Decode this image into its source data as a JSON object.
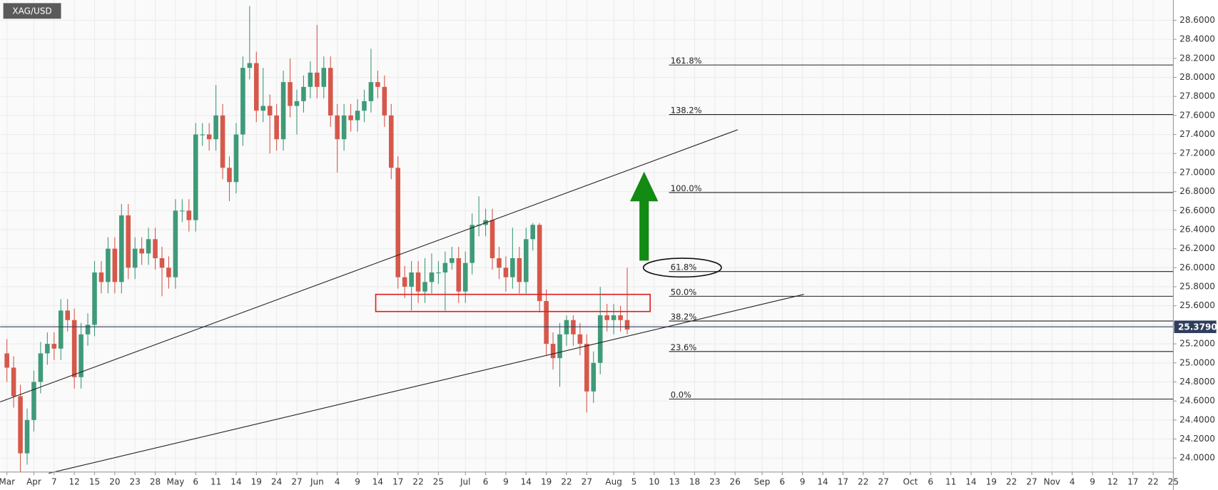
{
  "chart_data": {
    "type": "candlestick",
    "title": "XAG/USD",
    "up_color": "#3f9a78",
    "down_color": "#d6584b",
    "grid": true,
    "xlim": [
      -1,
      173
    ],
    "ylim": [
      23.853,
      28.813
    ],
    "xticks": [
      {
        "value": 0,
        "label": "Mar"
      },
      {
        "value": 4,
        "label": "Apr"
      },
      7,
      {
        "value": 10,
        "label": "12"
      },
      {
        "value": 13,
        "label": "15"
      },
      {
        "value": 16,
        "label": "20"
      },
      {
        "value": 19,
        "label": "23"
      },
      {
        "value": 22,
        "label": "28"
      },
      {
        "value": 25,
        "label": "May"
      },
      {
        "value": 28,
        "label": "6"
      },
      {
        "value": 31,
        "label": "11"
      },
      {
        "value": 34,
        "label": "14"
      },
      {
        "value": 37,
        "label": "19"
      },
      {
        "value": 40,
        "label": "24"
      },
      {
        "value": 43,
        "label": "27"
      },
      {
        "value": 46,
        "label": "Jun"
      },
      {
        "value": 49,
        "label": "4"
      },
      {
        "value": 52,
        "label": "9"
      },
      {
        "value": 55,
        "label": "14"
      },
      {
        "value": 58,
        "label": "17"
      },
      {
        "value": 61,
        "label": "22"
      },
      {
        "value": 64,
        "label": "25"
      },
      {
        "value": 68,
        "label": "Jul"
      },
      {
        "value": 71,
        "label": "6"
      },
      {
        "value": 74,
        "label": "9"
      },
      {
        "value": 77,
        "label": "14"
      },
      {
        "value": 80,
        "label": "19"
      },
      {
        "value": 83,
        "label": "22"
      },
      {
        "value": 86,
        "label": "27"
      },
      {
        "value": 90,
        "label": "Aug"
      },
      {
        "value": 93,
        "label": "5"
      },
      {
        "value": 96,
        "label": "10"
      },
      {
        "value": 99,
        "label": "13"
      },
      {
        "value": 102,
        "label": "18"
      },
      {
        "value": 105,
        "label": "23"
      },
      {
        "value": 108,
        "label": "26"
      },
      {
        "value": 112,
        "label": "Sep"
      },
      {
        "value": 115,
        "label": "6"
      },
      {
        "value": 118,
        "label": "9"
      },
      {
        "value": 121,
        "label": "14"
      },
      {
        "value": 124,
        "label": "17"
      },
      {
        "value": 127,
        "label": "22"
      },
      {
        "value": 130,
        "label": "27"
      },
      {
        "value": 134,
        "label": "Oct"
      },
      {
        "value": 137,
        "label": "6"
      },
      {
        "value": 140,
        "label": "11"
      },
      {
        "value": 143,
        "label": "14"
      },
      {
        "value": 146,
        "label": "19"
      },
      {
        "value": 149,
        "label": "22"
      },
      {
        "value": 152,
        "label": "27"
      },
      {
        "value": 155,
        "label": "Nov"
      },
      {
        "value": 158,
        "label": "4"
      },
      {
        "value": 161,
        "label": "9"
      },
      {
        "value": 164,
        "label": "12"
      },
      {
        "value": 167,
        "label": "17"
      },
      {
        "value": 170,
        "label": "22"
      },
      {
        "value": 173,
        "label": "25"
      }
    ],
    "yticks": [
      {
        "value": 24.0,
        "label": "24.0000"
      },
      {
        "value": 24.2,
        "label": "24.2000"
      },
      {
        "value": 24.4,
        "label": "24.4000"
      },
      {
        "value": 24.6,
        "label": "24.6000"
      },
      {
        "value": 24.8,
        "label": "24.8000"
      },
      {
        "value": 25.0,
        "label": "25.0000"
      },
      {
        "value": 25.2,
        "label": "25.2000"
      },
      {
        "value": 25.4,
        "label": "25.4000"
      },
      {
        "value": 25.6,
        "label": "25.6000"
      },
      {
        "value": 25.8,
        "label": "25.8000"
      },
      {
        "value": 26.0,
        "label": "26.0000"
      },
      {
        "value": 26.2,
        "label": "26.2000"
      },
      {
        "value": 26.4,
        "label": "26.4000"
      },
      {
        "value": 26.6,
        "label": "26.6000"
      },
      {
        "value": 26.8,
        "label": "26.8000"
      },
      {
        "value": 27.0,
        "label": "27.0000"
      },
      {
        "value": 27.2,
        "label": "27.2000"
      },
      {
        "value": 27.4,
        "label": "27.4000"
      },
      {
        "value": 27.6,
        "label": "27.6000"
      },
      {
        "value": 27.8,
        "label": "27.8000"
      },
      {
        "value": 28.0,
        "label": "28.0000"
      },
      {
        "value": 28.2,
        "label": "28.2000"
      },
      {
        "value": 28.4,
        "label": "28.4000"
      },
      {
        "value": 28.6,
        "label": "28.6000"
      }
    ],
    "x": [
      0,
      1,
      2,
      3,
      4,
      5,
      6,
      7,
      8,
      9,
      10,
      11,
      12,
      13,
      14,
      15,
      16,
      17,
      18,
      19,
      20,
      21,
      22,
      23,
      24,
      25,
      26,
      27,
      28,
      29,
      30,
      31,
      32,
      33,
      34,
      35,
      36,
      37,
      38,
      39,
      40,
      41,
      42,
      43,
      44,
      45,
      46,
      47,
      48,
      49,
      50,
      51,
      52,
      53,
      54,
      55,
      56,
      57,
      58,
      59,
      60,
      61,
      62,
      63,
      64,
      65,
      66,
      67,
      68,
      69,
      70,
      71,
      72,
      73,
      74,
      75,
      76,
      77,
      78,
      79,
      80,
      81,
      82,
      83,
      84,
      85,
      86,
      87,
      88,
      89,
      90,
      91,
      92
    ],
    "open": [
      25.1,
      24.95,
      24.65,
      24.05,
      24.4,
      24.8,
      25.1,
      25.2,
      25.15,
      25.55,
      25.45,
      24.85,
      25.3,
      25.4,
      25.95,
      25.85,
      26.2,
      25.85,
      26.55,
      26.0,
      26.2,
      26.15,
      26.3,
      26.1,
      26.0,
      25.9,
      26.6,
      26.6,
      26.5,
      27.4,
      27.4,
      27.35,
      27.6,
      27.05,
      26.9,
      27.4,
      28.1,
      28.15,
      27.65,
      27.7,
      27.6,
      27.35,
      27.95,
      27.7,
      27.75,
      27.9,
      28.05,
      27.9,
      28.1,
      27.6,
      27.35,
      27.6,
      27.55,
      27.65,
      27.75,
      27.95,
      27.9,
      27.6,
      27.05,
      25.9,
      25.8,
      25.95,
      25.75,
      25.85,
      25.95,
      25.95,
      26.05,
      26.1,
      25.75,
      26.05,
      26.45,
      26.45,
      26.5,
      26.1,
      26.0,
      25.9,
      26.1,
      25.85,
      26.3,
      26.45,
      25.65,
      25.2,
      25.05,
      25.3,
      25.45,
      25.3,
      25.2,
      24.7,
      25.0,
      25.5,
      25.45,
      25.5,
      25.45
    ],
    "high": [
      25.25,
      25.07,
      24.77,
      24.52,
      24.92,
      25.22,
      25.32,
      25.32,
      25.67,
      25.67,
      25.57,
      25.42,
      25.52,
      26.07,
      26.07,
      26.32,
      26.32,
      26.67,
      26.67,
      26.32,
      26.32,
      26.42,
      26.42,
      26.22,
      26.12,
      26.72,
      26.72,
      26.72,
      27.52,
      27.52,
      27.52,
      27.92,
      27.72,
      27.17,
      27.52,
      28.22,
      28.75,
      28.27,
      28.1,
      27.82,
      27.72,
      28.07,
      28.2,
      27.87,
      28.02,
      28.17,
      28.55,
      28.22,
      28.22,
      27.72,
      27.72,
      27.72,
      27.77,
      27.87,
      28.3,
      28.07,
      28.02,
      27.72,
      27.17,
      26.02,
      26.07,
      26.07,
      26.1,
      26.15,
      26.07,
      26.17,
      26.22,
      26.22,
      26.17,
      26.57,
      26.75,
      26.62,
      26.62,
      26.22,
      26.12,
      26.42,
      26.22,
      26.42,
      26.47,
      26.47,
      25.77,
      25.32,
      25.42,
      25.5,
      25.5,
      25.42,
      25.3,
      25.12,
      25.8,
      25.62,
      25.62,
      25.6,
      26.0
    ],
    "low": [
      24.8,
      24.53,
      23.85,
      23.93,
      24.28,
      24.68,
      24.98,
      25.03,
      25.03,
      25.33,
      24.73,
      24.73,
      25.18,
      25.28,
      25.73,
      25.73,
      25.73,
      25.73,
      25.88,
      25.88,
      26.03,
      26.03,
      25.98,
      25.7,
      25.78,
      25.78,
      26.48,
      26.38,
      26.38,
      27.28,
      27.23,
      27.23,
      26.93,
      26.7,
      26.78,
      27.28,
      27.98,
      27.53,
      27.53,
      27.2,
      27.23,
      27.23,
      27.58,
      27.4,
      27.63,
      27.78,
      27.78,
      27.78,
      27.48,
      27.0,
      27.23,
      27.43,
      27.43,
      27.53,
      27.63,
      27.78,
      27.48,
      26.93,
      25.78,
      25.68,
      25.55,
      25.63,
      25.63,
      25.73,
      25.83,
      25.55,
      25.98,
      25.63,
      25.63,
      25.93,
      26.33,
      26.33,
      25.98,
      25.88,
      25.75,
      25.78,
      25.73,
      25.73,
      26.18,
      25.53,
      25.08,
      24.93,
      24.75,
      25.18,
      25.18,
      25.08,
      24.48,
      24.58,
      24.88,
      25.33,
      25.3,
      25.33,
      25.3
    ],
    "close": [
      24.95,
      24.65,
      24.05,
      24.4,
      24.8,
      25.1,
      25.2,
      25.15,
      25.55,
      25.45,
      24.85,
      25.3,
      25.4,
      25.95,
      25.85,
      26.2,
      25.85,
      26.55,
      26.0,
      26.2,
      26.15,
      26.3,
      26.1,
      26.0,
      25.9,
      26.6,
      26.6,
      26.5,
      27.4,
      27.4,
      27.35,
      27.6,
      27.05,
      26.9,
      27.4,
      28.1,
      28.15,
      27.65,
      27.7,
      27.6,
      27.35,
      27.95,
      27.7,
      27.75,
      27.9,
      28.05,
      27.9,
      28.1,
      27.6,
      27.35,
      27.6,
      27.55,
      27.65,
      27.75,
      27.95,
      27.9,
      27.6,
      27.05,
      25.9,
      25.8,
      25.95,
      25.75,
      25.85,
      25.95,
      25.95,
      26.05,
      26.1,
      25.75,
      26.05,
      26.45,
      26.45,
      26.5,
      26.1,
      26.0,
      25.9,
      26.1,
      25.85,
      26.3,
      26.45,
      25.65,
      25.2,
      25.05,
      25.3,
      25.45,
      25.3,
      25.2,
      24.7,
      25.0,
      25.5,
      25.45,
      25.5,
      25.45,
      25.35
    ],
    "last_price": {
      "value": 25.379,
      "label": "25.37900"
    },
    "fib": {
      "x_start": 98.2,
      "labels": [
        "161.8%",
        "138.2%",
        "100.0%",
        "61.8%",
        "50.0%",
        "38.2%",
        "23.6%",
        "0.0%"
      ],
      "prices": [
        28.13,
        27.61,
        26.79,
        25.96,
        25.7,
        25.44,
        25.12,
        24.62
      ]
    },
    "trendlines": [
      {
        "x": [
          -1,
          108.4
        ],
        "y": [
          24.59,
          27.45
        ]
      },
      {
        "x": [
          6.2,
          118.2
        ],
        "y": [
          23.84,
          25.72
        ]
      }
    ],
    "zone": {
      "x": [
        54.7,
        95.4
      ],
      "y": [
        25.54,
        25.72
      ],
      "color": "#e02020"
    }
  }
}
